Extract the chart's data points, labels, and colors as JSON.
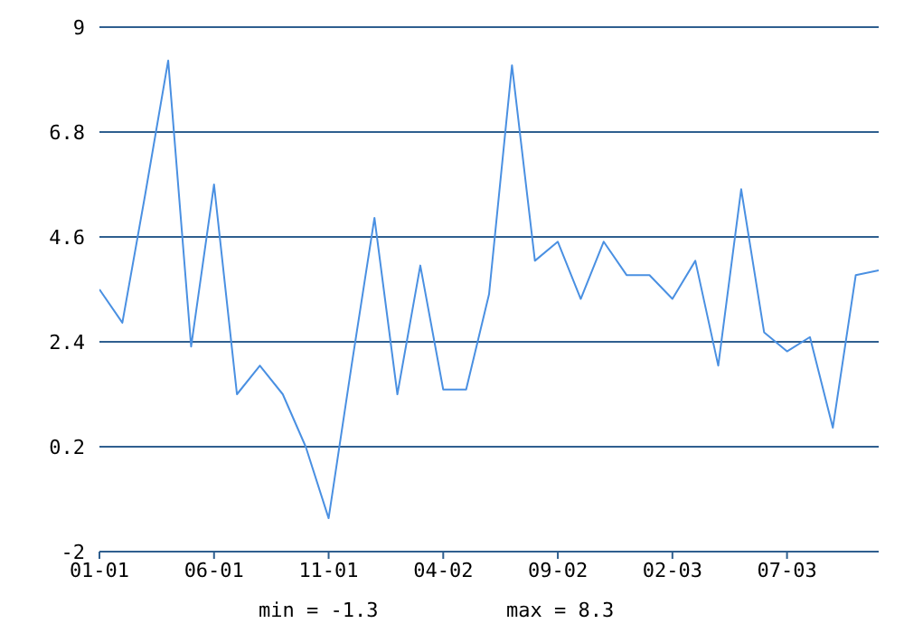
{
  "chart_data": {
    "type": "line",
    "x": [
      "2001-01",
      "2001-02",
      "2001-03",
      "2001-04",
      "2001-05",
      "2001-06",
      "2001-07",
      "2001-08",
      "2001-09",
      "2001-10",
      "2001-11",
      "2001-12",
      "2002-01",
      "2002-02",
      "2002-03",
      "2002-04",
      "2002-05",
      "2002-06",
      "2002-07",
      "2002-08",
      "2002-09",
      "2002-10",
      "2002-11",
      "2002-12",
      "2003-01",
      "2003-02",
      "2003-03",
      "2003-04",
      "2003-05",
      "2003-06",
      "2003-07",
      "2003-08",
      "2003-09",
      "2003-10",
      "2003-11"
    ],
    "series": [
      {
        "color": "#4a90e2",
        "values": [
          3.5,
          2.8,
          5.5,
          8.3,
          2.3,
          5.7,
          1.3,
          1.9,
          1.3,
          0.2,
          -1.3,
          1.9,
          5.0,
          1.3,
          4.0,
          1.4,
          1.4,
          3.4,
          8.2,
          4.1,
          4.5,
          3.3,
          4.5,
          3.8,
          3.8,
          3.3,
          4.1,
          1.9,
          5.6,
          2.6,
          2.2,
          2.5,
          0.6,
          3.8,
          3.9
        ]
      }
    ],
    "xlim": [
      "2001-01",
      "2003-11"
    ],
    "xticks": [
      {
        "value": "2001-01",
        "label": "01-01"
      },
      {
        "value": "2001-06",
        "label": "06-01"
      },
      {
        "value": "2001-11",
        "label": "11-01"
      },
      {
        "value": "2002-04",
        "label": "04-02"
      },
      {
        "value": "2002-09",
        "label": "09-02"
      },
      {
        "value": "2003-02",
        "label": "02-03"
      },
      {
        "value": "2003-07",
        "label": "07-03"
      }
    ],
    "ylim": [
      -2,
      9
    ],
    "yticks": [
      -2,
      0.2,
      2.4,
      4.6,
      6.8,
      9
    ],
    "grid": "y",
    "marker": "none",
    "line_style": "solid",
    "annotations": [
      "min = -1.3",
      "max = 8.3"
    ]
  }
}
